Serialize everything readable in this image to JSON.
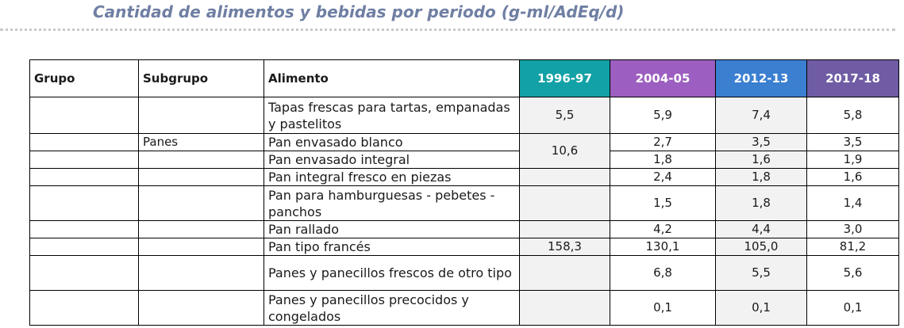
{
  "title": "Cantidad de alimentos y bebidas por periodo (g-ml/AdEq/d)",
  "colors": {
    "title": "#6f7fa3",
    "y1996": "#12a1a6",
    "y2004": "#9c5ec0",
    "y2012": "#3b7fd1",
    "y2017": "#6f5ca4",
    "shaded": "#f2f2f2"
  },
  "table": {
    "headers": {
      "grupo": "Grupo",
      "subgrupo": "Subgrupo",
      "alimento": "Alimento",
      "y1": "1996-97",
      "y2": "2004-05",
      "y3": "2012-13",
      "y4": "2017-18"
    },
    "rows": [
      {
        "grupo": "",
        "subgrupo": "",
        "alimento": "Tapas frescas para tartas, empanadas y pastelitos",
        "v1": "5,5",
        "v2": "5,9",
        "v3": "7,4",
        "v4": "5,8"
      },
      {
        "grupo": "",
        "subgrupo": "Panes",
        "alimento": "Pan envasado blanco",
        "v1": "10,6",
        "v2": "2,7",
        "v3": "3,5",
        "v4": "3,5"
      },
      {
        "grupo": "",
        "subgrupo": "",
        "alimento": "Pan envasado integral",
        "v1": "",
        "v2": "1,8",
        "v3": "1,6",
        "v4": "1,9"
      },
      {
        "grupo": "",
        "subgrupo": "",
        "alimento": "Pan integral fresco en piezas",
        "v1": "",
        "v2": "2,4",
        "v3": "1,8",
        "v4": "1,6"
      },
      {
        "grupo": "",
        "subgrupo": "",
        "alimento": "Pan para hamburguesas - pebetes - panchos",
        "v1": "",
        "v2": "1,5",
        "v3": "1,8",
        "v4": "1,4"
      },
      {
        "grupo": "",
        "subgrupo": "",
        "alimento": "Pan rallado",
        "v1": "",
        "v2": "4,2",
        "v3": "4,4",
        "v4": "3,0"
      },
      {
        "grupo": "",
        "subgrupo": "",
        "alimento": "Pan tipo francés",
        "v1": "158,3",
        "v2": "130,1",
        "v3": "105,0",
        "v4": "81,2"
      },
      {
        "grupo": "",
        "subgrupo": "",
        "alimento": "Panes y panecillos frescos de otro tipo",
        "v1": "",
        "v2": "6,8",
        "v3": "5,5",
        "v4": "5,6"
      },
      {
        "grupo": "",
        "subgrupo": "",
        "alimento": "Panes y panecillos precocidos y congelados",
        "v1": "",
        "v2": "0,1",
        "v3": "0,1",
        "v4": "0,1"
      }
    ]
  }
}
